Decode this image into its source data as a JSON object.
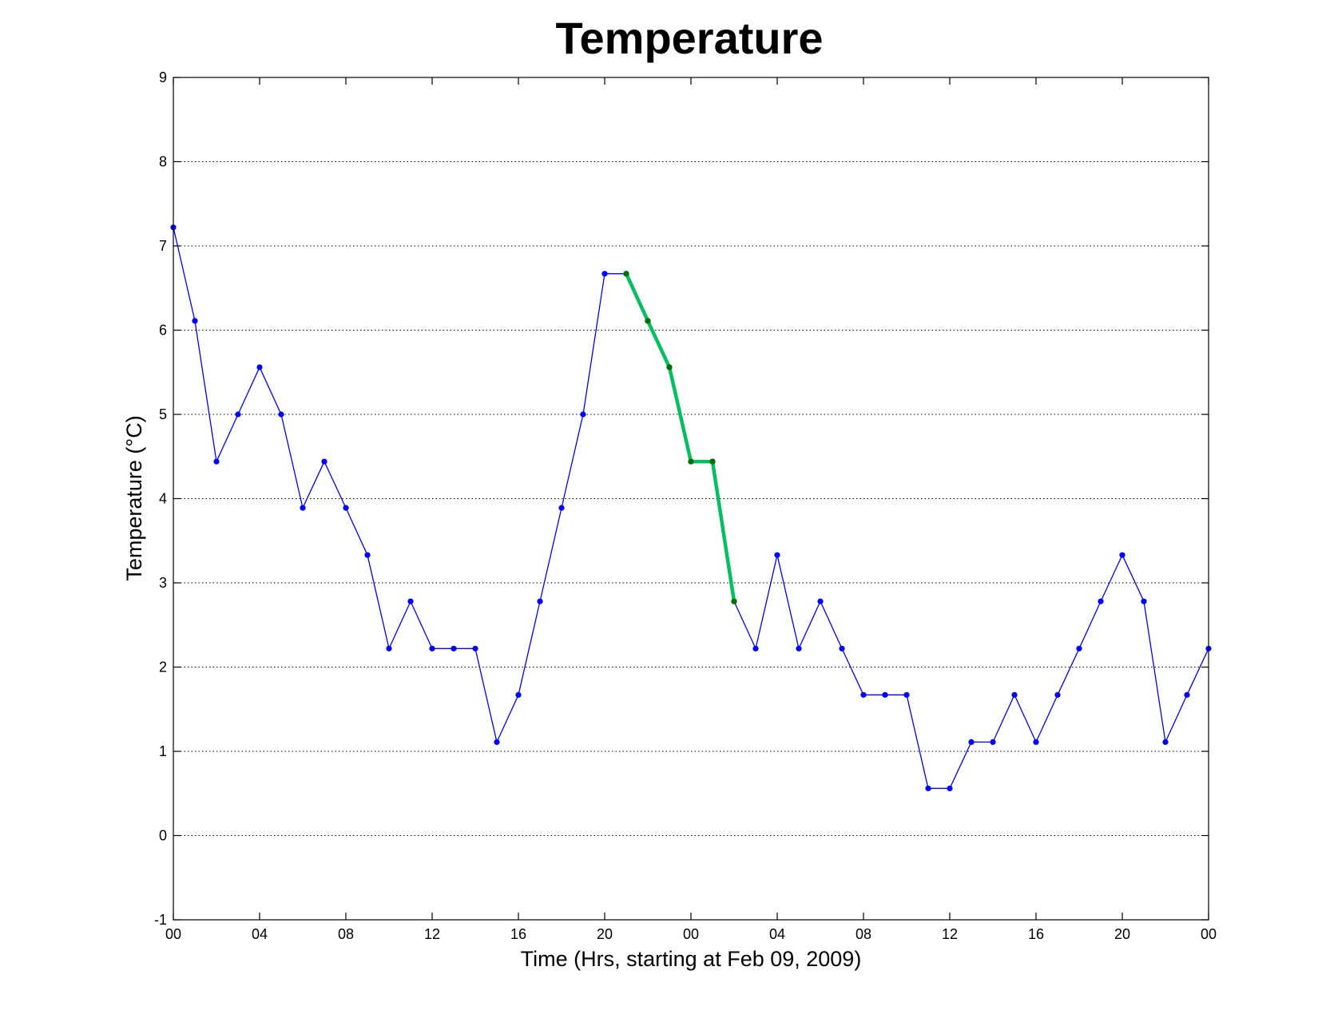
{
  "chart_data": {
    "type": "line",
    "title": "Temperature",
    "xlabel": "Time (Hrs, starting at Feb 09, 2009)",
    "ylabel": "Temperature (°C)",
    "xlim": [
      0,
      48
    ],
    "ylim": [
      -1,
      9
    ],
    "grid": "y dotted",
    "x_tick_values": [
      0,
      4,
      8,
      12,
      16,
      20,
      24,
      28,
      32,
      36,
      40,
      44,
      48
    ],
    "x_tick_labels": [
      "00",
      "04",
      "08",
      "12",
      "16",
      "20",
      "00",
      "04",
      "08",
      "12",
      "16",
      "20",
      "00"
    ],
    "y_tick_values": [
      -1,
      0,
      1,
      2,
      3,
      4,
      5,
      6,
      7,
      8,
      9
    ],
    "y_tick_labels": [
      "-1",
      "0",
      "1",
      "2",
      "3",
      "4",
      "5",
      "6",
      "7",
      "8",
      "9"
    ],
    "x": [
      0,
      1,
      2,
      3,
      4,
      5,
      6,
      7,
      8,
      9,
      10,
      11,
      12,
      13,
      14,
      15,
      16,
      17,
      18,
      19,
      20,
      21,
      22,
      23,
      24,
      25,
      26,
      27,
      28,
      29,
      30,
      31,
      32,
      33,
      34,
      35,
      36,
      37,
      38,
      39,
      40,
      41,
      42,
      43,
      44,
      45,
      46,
      47,
      48
    ],
    "series": [
      {
        "color": "#0000ff",
        "values": [
          7.22,
          6.11,
          4.44,
          5.0,
          5.56,
          5.0,
          3.89,
          4.44,
          3.89,
          3.33,
          2.22,
          2.78,
          2.22,
          2.22,
          2.22,
          1.11,
          1.67,
          2.78,
          3.89,
          5.0,
          6.67,
          6.67,
          6.11,
          5.56,
          4.44,
          4.44,
          2.78,
          2.22,
          3.33,
          2.22,
          2.78,
          2.22,
          1.67,
          1.67,
          1.67,
          0.56,
          0.56,
          1.11,
          1.11,
          1.67,
          1.11,
          1.67,
          2.22,
          2.78,
          3.33,
          2.78,
          1.11,
          1.67,
          2.22
        ]
      },
      {
        "color": "#00c060",
        "marker_color": "#007000",
        "x": [
          21,
          22,
          23,
          24,
          25,
          26
        ],
        "values": [
          6.67,
          6.11,
          5.56,
          4.44,
          4.44,
          2.78
        ]
      }
    ]
  }
}
